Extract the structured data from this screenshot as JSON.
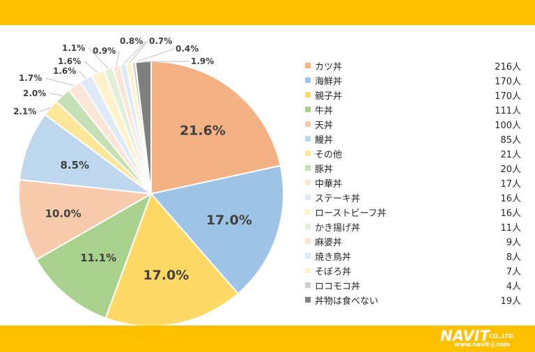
{
  "colors": {
    "band": "#FFC000",
    "logo_text": "#ffffff"
  },
  "logo": {
    "name": "NAVIT",
    "company": "CO.,LTD.",
    "url": "www.navit-j.com"
  },
  "chart_data": {
    "type": "pie",
    "title": "",
    "legend_position": "right",
    "slices": [
      {
        "label": "カツ丼",
        "count_label": "216人",
        "value": 216,
        "percent_label": "21.6%",
        "color": "#F4B183"
      },
      {
        "label": "海鮮丼",
        "count_label": "170人",
        "value": 170,
        "percent_label": "17.0%",
        "color": "#9DC3E6"
      },
      {
        "label": "親子丼",
        "count_label": "170人",
        "value": 170,
        "percent_label": "17.0%",
        "color": "#FFD966"
      },
      {
        "label": "牛丼",
        "count_label": "111人",
        "value": 111,
        "percent_label": "11.1%",
        "color": "#A9D18E"
      },
      {
        "label": "天丼",
        "count_label": "100人",
        "value": 100,
        "percent_label": "10.0%",
        "color": "#F8CBAD"
      },
      {
        "label": "鰻丼",
        "count_label": "85人",
        "value": 85,
        "percent_label": "8.5%",
        "color": "#BDD7EE"
      },
      {
        "label": "その他",
        "count_label": "21人",
        "value": 21,
        "percent_label": "2.1%",
        "color": "#FFE699"
      },
      {
        "label": "豚丼",
        "count_label": "20人",
        "value": 20,
        "percent_label": "2.0%",
        "color": "#C5E0B4"
      },
      {
        "label": "中華丼",
        "count_label": "17人",
        "value": 17,
        "percent_label": "1.7%",
        "color": "#FBE5D6"
      },
      {
        "label": "ステーキ丼",
        "count_label": "16人",
        "value": 16,
        "percent_label": "1.6%",
        "color": "#DEEBF7"
      },
      {
        "label": "ローストビーフ丼",
        "count_label": "16人",
        "value": 16,
        "percent_label": "1.6%",
        "color": "#FFF2CC"
      },
      {
        "label": "かき揚げ丼",
        "count_label": "11人",
        "value": 11,
        "percent_label": "1.1%",
        "color": "#E2F0D9"
      },
      {
        "label": "麻婆丼",
        "count_label": "9人",
        "value": 9,
        "percent_label": "0.9%",
        "color": "#FCE4D6"
      },
      {
        "label": "焼き鳥丼",
        "count_label": "8人",
        "value": 8,
        "percent_label": "0.8%",
        "color": "#DDEBF7"
      },
      {
        "label": "そぼろ丼",
        "count_label": "7人",
        "value": 7,
        "percent_label": "0.7%",
        "color": "#FFF2CC"
      },
      {
        "label": "ロコモコ丼",
        "count_label": "4人",
        "value": 4,
        "percent_label": "0.4%",
        "color": "#D0D0D0"
      },
      {
        "label": "丼物は食べない",
        "count_label": "19人",
        "value": 19,
        "percent_label": "1.9%",
        "color": "#7F7F7F"
      }
    ]
  }
}
